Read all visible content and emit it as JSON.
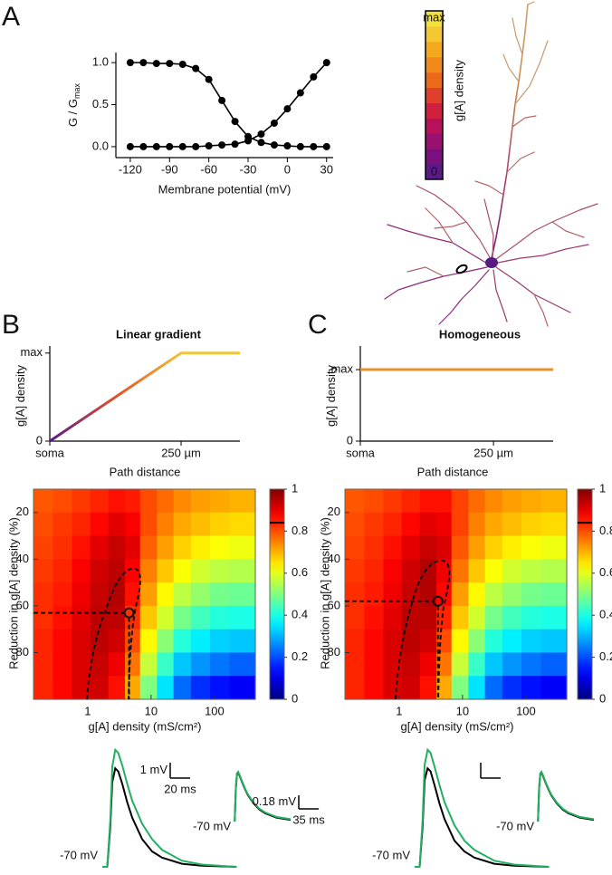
{
  "panel_labels": [
    "A",
    "B",
    "C"
  ],
  "chart_data": [
    {
      "type": "line",
      "xlabel": "Membrane potential (mV)",
      "ylabel": "G / G",
      "ylabel_sub": "max",
      "markers": true,
      "x": [
        -120,
        -110,
        -100,
        -90,
        -80,
        -70,
        -60,
        -50,
        -40,
        -30,
        -20,
        -10,
        0,
        10,
        20,
        30
      ],
      "series": [
        {
          "color": "#000000",
          "values": [
            1.0,
            1.0,
            0.99,
            0.99,
            0.98,
            0.93,
            0.8,
            0.55,
            0.3,
            0.12,
            0.05,
            0.02,
            0.01,
            0,
            0,
            0
          ]
        },
        {
          "color": "#000000",
          "values": [
            0,
            0,
            0,
            0,
            0,
            0,
            0.01,
            0.02,
            0.03,
            0.07,
            0.15,
            0.28,
            0.45,
            0.64,
            0.83,
            1.0
          ]
        }
      ],
      "xlim": [
        -131,
        35
      ],
      "ylim": [
        -0.13,
        1.12
      ],
      "xticks": [
        -120,
        -90,
        -60,
        -30,
        0,
        30
      ],
      "yticks": [
        {
          "value": 0,
          "label": "0.0"
        },
        {
          "value": 0.5,
          "label": "0.5"
        },
        {
          "value": 1,
          "label": "1.0"
        }
      ]
    },
    {
      "type": "colorbar",
      "label": "g[A] density",
      "lim": [
        0,
        1
      ],
      "ticks": [
        0,
        {
          "value": 1,
          "label": "max"
        }
      ],
      "colors": [
        "#5a1a8a",
        "#7a1080",
        "#9a1070",
        "#b8105a",
        "#d0203e",
        "#e0402a",
        "#ee6a1a",
        "#f28a1a",
        "#f4a820",
        "#f3c830",
        "#f2e040"
      ]
    },
    {
      "type": "line",
      "title": "Linear gradient",
      "xlabel": "Path distance",
      "ylabel": "g[A] density",
      "x": [
        0,
        250,
        362
      ],
      "values": [
        0,
        1,
        1
      ],
      "gradient": [
        "#5a1a8a",
        "#e0502a",
        "#f0c438"
      ],
      "xlim": [
        0,
        362
      ],
      "ylim": [
        0,
        1.08
      ],
      "xticks": [
        {
          "value": 0,
          "label": "soma"
        },
        {
          "value": 250,
          "label": "250 µm"
        }
      ],
      "yticks": [
        0,
        {
          "value": 1,
          "label": "max"
        }
      ]
    },
    {
      "type": "line",
      "title": "Homogeneous",
      "xlabel": "Path distance",
      "ylabel": "g[A] density",
      "x": [
        0,
        362
      ],
      "values": [
        1,
        1
      ],
      "color": "#e8922a",
      "xlim": [
        0,
        362
      ],
      "ylim": [
        0,
        1.33
      ],
      "xticks": [
        {
          "value": 0,
          "label": "soma"
        },
        {
          "value": 250,
          "label": "250 µm"
        }
      ],
      "yticks": [
        0,
        {
          "value": 1,
          "label": "max"
        }
      ]
    },
    {
      "type": "heatmap",
      "xlabel": "g[A] density (mS/cm²)",
      "ylabel": "Reduction in g[A] density (%)",
      "colormap": "jet",
      "log_x": true,
      "x": [
        0.2,
        0.4,
        0.8,
        1.5,
        3,
        5,
        9,
        17,
        30,
        60,
        120,
        250
      ],
      "y": [
        15,
        25,
        35,
        45,
        55,
        65,
        75,
        85,
        95
      ],
      "z": [
        [
          0.79,
          0.8,
          0.82,
          0.84,
          0.86,
          0.85,
          0.8,
          0.77,
          0.74,
          0.72,
          0.71,
          0.7
        ],
        [
          0.8,
          0.82,
          0.84,
          0.87,
          0.9,
          0.88,
          0.8,
          0.75,
          0.71,
          0.69,
          0.67,
          0.66
        ],
        [
          0.81,
          0.83,
          0.86,
          0.9,
          0.93,
          0.9,
          0.78,
          0.72,
          0.67,
          0.64,
          0.62,
          0.61
        ],
        [
          0.82,
          0.84,
          0.88,
          0.92,
          0.94,
          0.88,
          0.75,
          0.68,
          0.62,
          0.58,
          0.56,
          0.55
        ],
        [
          0.83,
          0.85,
          0.89,
          0.93,
          0.95,
          0.86,
          0.72,
          0.63,
          0.56,
          0.52,
          0.49,
          0.48
        ],
        [
          0.83,
          0.86,
          0.9,
          0.94,
          0.94,
          0.83,
          0.68,
          0.58,
          0.49,
          0.44,
          0.41,
          0.4
        ],
        [
          0.84,
          0.87,
          0.91,
          0.94,
          0.92,
          0.8,
          0.63,
          0.51,
          0.41,
          0.36,
          0.33,
          0.32
        ],
        [
          0.84,
          0.87,
          0.91,
          0.93,
          0.89,
          0.76,
          0.57,
          0.43,
          0.32,
          0.27,
          0.24,
          0.22
        ],
        [
          0.84,
          0.87,
          0.91,
          0.92,
          0.86,
          0.71,
          0.5,
          0.35,
          0.23,
          0.17,
          0.14,
          0.12
        ]
      ],
      "xlim": [
        0.14,
        440
      ],
      "ylim": [
        100,
        10
      ],
      "xticks": [
        1,
        10,
        100
      ],
      "yticks": [
        20,
        40,
        60,
        80
      ],
      "colorbar": {
        "lim": [
          0,
          1
        ],
        "ticks": [
          0,
          0.2,
          0.4,
          0.6,
          0.8,
          1
        ],
        "marker": 0.84
      },
      "optimum": {
        "x": 4.5,
        "y": 63
      }
    },
    {
      "type": "heatmap",
      "xlabel": "g[A] density (mS/cm²)",
      "ylabel": "Reduction in g[A] density (%)",
      "colormap": "jet",
      "log_x": true,
      "x": [
        0.2,
        0.4,
        0.8,
        1.5,
        3,
        5,
        9,
        17,
        30,
        60,
        120,
        250
      ],
      "y": [
        15,
        25,
        35,
        45,
        55,
        65,
        75,
        85,
        95
      ],
      "z": [
        [
          0.79,
          0.8,
          0.82,
          0.84,
          0.86,
          0.86,
          0.81,
          0.77,
          0.74,
          0.72,
          0.71,
          0.7
        ],
        [
          0.8,
          0.82,
          0.84,
          0.87,
          0.9,
          0.89,
          0.81,
          0.75,
          0.71,
          0.69,
          0.67,
          0.66
        ],
        [
          0.81,
          0.83,
          0.86,
          0.9,
          0.93,
          0.91,
          0.79,
          0.72,
          0.67,
          0.64,
          0.62,
          0.61
        ],
        [
          0.82,
          0.84,
          0.88,
          0.92,
          0.95,
          0.89,
          0.76,
          0.68,
          0.62,
          0.58,
          0.56,
          0.55
        ],
        [
          0.83,
          0.85,
          0.89,
          0.93,
          0.95,
          0.87,
          0.72,
          0.63,
          0.56,
          0.52,
          0.49,
          0.48
        ],
        [
          0.83,
          0.86,
          0.9,
          0.94,
          0.94,
          0.84,
          0.68,
          0.58,
          0.49,
          0.44,
          0.41,
          0.4
        ],
        [
          0.84,
          0.87,
          0.91,
          0.94,
          0.92,
          0.8,
          0.63,
          0.51,
          0.41,
          0.36,
          0.33,
          0.32
        ],
        [
          0.84,
          0.87,
          0.91,
          0.93,
          0.89,
          0.76,
          0.57,
          0.43,
          0.32,
          0.27,
          0.24,
          0.22
        ],
        [
          0.84,
          0.87,
          0.91,
          0.92,
          0.86,
          0.71,
          0.5,
          0.35,
          0.23,
          0.17,
          0.14,
          0.12
        ]
      ],
      "xlim": [
        0.14,
        440
      ],
      "ylim": [
        100,
        10
      ],
      "xticks": [
        1,
        10,
        100
      ],
      "yticks": [
        20,
        40,
        60,
        80
      ],
      "colorbar": {
        "lim": [
          0,
          1
        ],
        "ticks": [
          0,
          0.2,
          0.4,
          0.6,
          0.8,
          1
        ],
        "marker": 0.84
      },
      "optimum": {
        "x": 4.1,
        "y": 58
      }
    },
    {
      "type": "trace",
      "rest_label": "-70 mV",
      "x": [
        0,
        5,
        8,
        10,
        13,
        16,
        20,
        25,
        30,
        40,
        50,
        60,
        80,
        100,
        135
      ],
      "series": [
        {
          "color": "#000000",
          "values": [
            0,
            0,
            2.6,
            5.5,
            6.4,
            6.2,
            5.4,
            4.2,
            3.2,
            1.8,
            1.0,
            0.6,
            0.2,
            0.07,
            0
          ]
        },
        {
          "color": "#22b060",
          "values": [
            0,
            0,
            3,
            6.5,
            7.6,
            7.4,
            6.6,
            5.4,
            4.3,
            2.8,
            1.8,
            1.1,
            0.4,
            0.15,
            0
          ]
        }
      ],
      "scale_bar": {
        "x": {
          "value": 20,
          "label": "20 ms"
        },
        "y": {
          "value": 1,
          "label": "1 mV"
        }
      }
    },
    {
      "type": "trace",
      "rest_label": "-70 mV",
      "x": [
        0,
        2,
        4,
        6,
        8,
        11,
        15,
        20,
        25,
        35,
        45,
        55,
        75,
        100
      ],
      "series": [
        {
          "color": "#000000",
          "values": [
            0,
            0,
            0.43,
            0.62,
            0.64,
            0.59,
            0.51,
            0.42,
            0.34,
            0.23,
            0.15,
            0.1,
            0.04,
            0.01
          ]
        },
        {
          "color": "#22b060",
          "values": [
            0,
            0,
            0.45,
            0.63,
            0.65,
            0.6,
            0.52,
            0.43,
            0.35,
            0.24,
            0.16,
            0.11,
            0.05,
            0.02
          ]
        }
      ],
      "scale_bar": {
        "x": {
          "value": 35,
          "label": "35 ms"
        },
        "y": {
          "value": 0.18,
          "label": "0.18 mV"
        }
      }
    },
    {
      "type": "trace",
      "rest_label": "-70 mV",
      "x": [
        0,
        5,
        8,
        10,
        13,
        16,
        20,
        25,
        30,
        40,
        50,
        60,
        80,
        100,
        135
      ],
      "series": [
        {
          "color": "#000000",
          "values": [
            0,
            0,
            2.6,
            5.6,
            6.4,
            6.2,
            5.3,
            4.1,
            3.1,
            1.7,
            1.0,
            0.6,
            0.2,
            0.07,
            0
          ]
        },
        {
          "color": "#22b060",
          "values": [
            0,
            0,
            3,
            6.6,
            7.6,
            7.4,
            6.5,
            5.3,
            4.2,
            2.7,
            1.7,
            1.1,
            0.4,
            0.15,
            0
          ]
        }
      ],
      "scale_bar": {
        "x": 20,
        "y": 1
      }
    },
    {
      "type": "trace",
      "rest_label": "-70 mV",
      "x": [
        0,
        2,
        4,
        6,
        8,
        11,
        15,
        20,
        25,
        35,
        45,
        55,
        75,
        100
      ],
      "series": [
        {
          "color": "#000000",
          "values": [
            0,
            0,
            0.43,
            0.62,
            0.64,
            0.59,
            0.51,
            0.42,
            0.34,
            0.23,
            0.15,
            0.1,
            0.04,
            0.01
          ]
        },
        {
          "color": "#22b060",
          "values": [
            0,
            0,
            0.45,
            0.63,
            0.65,
            0.6,
            0.52,
            0.43,
            0.35,
            0.24,
            0.16,
            0.11,
            0.05,
            0.02
          ]
        }
      ]
    }
  ]
}
